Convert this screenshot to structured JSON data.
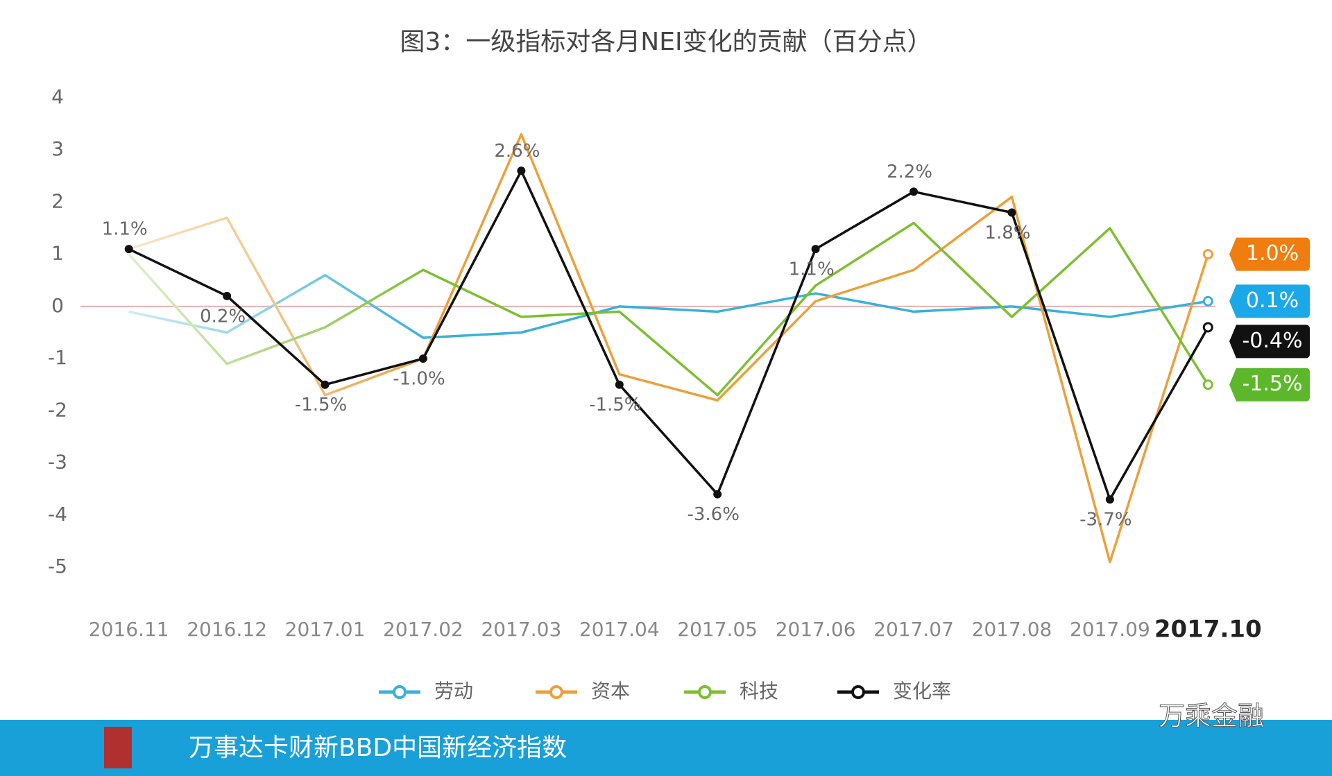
{
  "chart_data": {
    "type": "line",
    "title": "图3：一级指标对各月NEI变化的贡献（百分点）",
    "categories": [
      "2016.11",
      "2016.12",
      "2017.01",
      "2017.02",
      "2017.03",
      "2017.04",
      "2017.05",
      "2017.06",
      "2017.07",
      "2017.08",
      "2017.09",
      "2017.10"
    ],
    "series": [
      {
        "name": "劳动",
        "color": "#3ab0dc",
        "tag_color": "#1aa8e8",
        "values": [
          -0.1,
          -0.5,
          0.6,
          -0.6,
          -0.5,
          0.0,
          -0.1,
          0.25,
          -0.1,
          0.0,
          -0.2,
          0.1
        ],
        "value_labels": [
          null,
          null,
          null,
          null,
          null,
          null,
          null,
          null,
          null,
          null,
          null,
          "0.1%"
        ]
      },
      {
        "name": "资本",
        "color": "#eba03a",
        "tag_color": "#f07d10",
        "values": [
          1.1,
          1.7,
          -1.7,
          -1.0,
          3.3,
          -1.3,
          -1.8,
          0.1,
          0.7,
          2.1,
          -4.9,
          1.0
        ],
        "value_labels": [
          null,
          null,
          null,
          null,
          null,
          null,
          null,
          null,
          null,
          null,
          null,
          "1.0%"
        ]
      },
      {
        "name": "科技",
        "color": "#7cbf30",
        "tag_color": "#5cb82a",
        "values": [
          1.0,
          -1.1,
          -0.4,
          0.7,
          -0.2,
          -0.1,
          -1.7,
          0.4,
          1.6,
          -0.2,
          1.5,
          -1.5
        ],
        "value_labels": [
          null,
          null,
          null,
          null,
          null,
          null,
          null,
          null,
          null,
          null,
          null,
          "-1.5%"
        ]
      },
      {
        "name": "变化率",
        "color": "#111111",
        "tag_color": "#111111",
        "values": [
          1.1,
          0.2,
          -1.5,
          -1.0,
          2.6,
          -1.5,
          -3.6,
          1.1,
          2.2,
          1.8,
          -3.7,
          -0.4
        ],
        "value_labels": [
          "1.1%",
          "0.2%",
          "-1.5%",
          "-1.0%",
          "2.6%",
          "-1.5%",
          "-3.6%",
          "1.1%",
          "2.2%",
          "1.8%",
          "-3.7%",
          "-0.4%"
        ]
      }
    ],
    "ylim": [
      -5,
      4
    ],
    "yticks": [
      4,
      3,
      2,
      1,
      0,
      -1,
      -2,
      -3,
      -4,
      -5
    ],
    "grid": false
  },
  "footer": {
    "text": "万事达卡财新BBD中国新经济指数",
    "watermark": "万乘金融"
  }
}
